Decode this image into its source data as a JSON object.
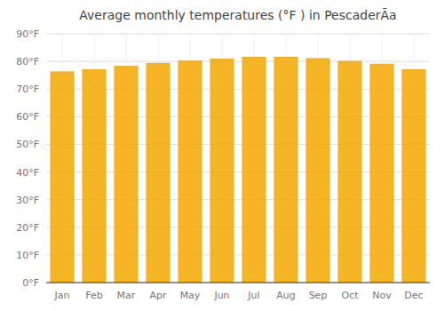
{
  "chart_data": {
    "type": "bar",
    "title": "Average monthly temperatures (°F ) in PescaderÃ­a",
    "categories": [
      "Jan",
      "Feb",
      "Mar",
      "Apr",
      "May",
      "Jun",
      "Jul",
      "Aug",
      "Sep",
      "Oct",
      "Nov",
      "Dec"
    ],
    "values": [
      76.2,
      77.0,
      78.2,
      79.3,
      80.1,
      80.8,
      81.5,
      81.5,
      81.0,
      80.0,
      79.0,
      77.0
    ],
    "color": "#F5A800",
    "ylim": [
      0,
      90
    ],
    "yticks": [
      {
        "value": 0,
        "label": "0°F"
      },
      {
        "value": 10,
        "label": "10°F"
      },
      {
        "value": 20,
        "label": "20°F"
      },
      {
        "value": 30,
        "label": "30°F"
      },
      {
        "value": 40,
        "label": "40°F"
      },
      {
        "value": 50,
        "label": "50°F"
      },
      {
        "value": 60,
        "label": "60°F"
      },
      {
        "value": 70,
        "label": "70°F"
      },
      {
        "value": 80,
        "label": "80°F"
      },
      {
        "value": 90,
        "label": "90°F"
      }
    ],
    "grid": true
  }
}
